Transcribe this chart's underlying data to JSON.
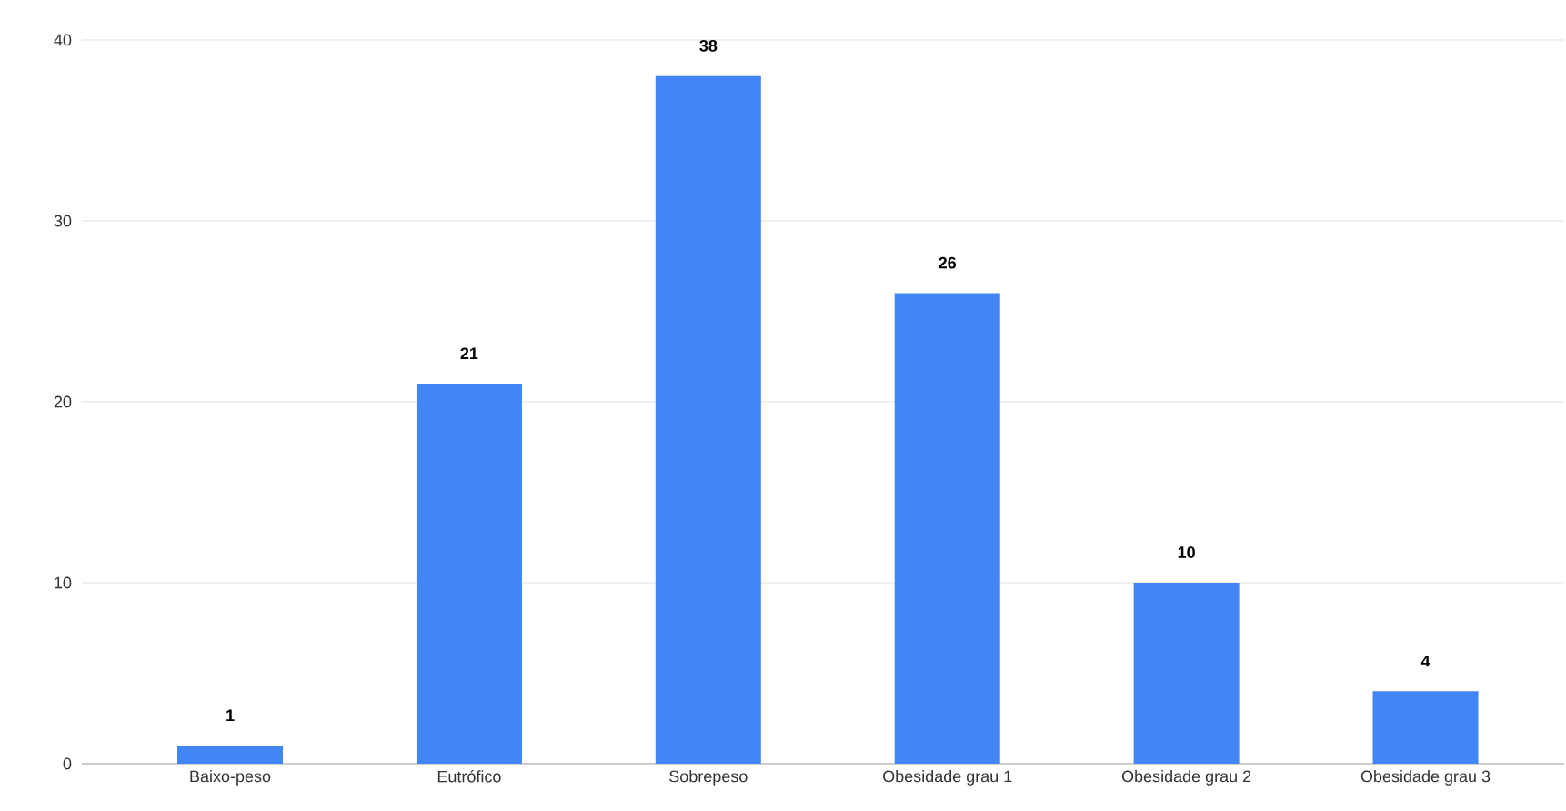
{
  "chart_data": {
    "type": "bar",
    "categories": [
      "Baixo-peso",
      "Eutrófico",
      "Sobrepeso",
      "Obesidade grau 1",
      "Obesidade grau 2",
      "Obesidade grau 3"
    ],
    "values": [
      1,
      21,
      38,
      26,
      10,
      4
    ],
    "color": "#4285f4",
    "ylim": [
      0,
      40
    ],
    "yticks": [
      0,
      10,
      20,
      30,
      40
    ],
    "grid": "y",
    "data_labels": true
  }
}
